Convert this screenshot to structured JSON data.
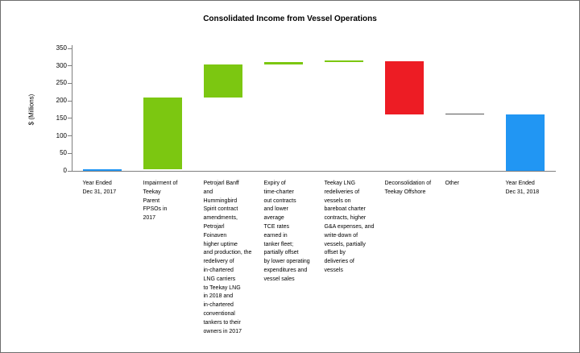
{
  "chart_data": {
    "type": "waterfall",
    "title": "Consolidated Income from Vessel Operations",
    "ylabel": "$ (Millions)",
    "ylim": [
      0,
      350
    ],
    "ytick_step": 50,
    "yticks": [
      0,
      50,
      100,
      150,
      200,
      250,
      300,
      350
    ],
    "grid": false,
    "legend": false,
    "colors": {
      "total": "#2196f3",
      "increase": "#7cc711",
      "decrease": "#ed1c24",
      "neutral": "#595959"
    },
    "bars": [
      {
        "label": "Year Ended\nDec 31, 2017",
        "start": 0,
        "end": 5,
        "role": "total"
      },
      {
        "label": "Impairment of\nTeekay\nParent\nFPSOs in\n2017",
        "start": 5,
        "end": 210,
        "role": "increase"
      },
      {
        "label": "Petrojarl Banff\nand\nHummingbird\nSpirit contract\namendments,\nPetrojarl\nFoinaven\nhigher uptime\nand production, the\nredelivery of\nin-chartered\nLNG carriers\nto Teekay LNG\nin 2018 and\nin-chartered\nconventional\ntankers to their\nowners in 2017",
        "start": 210,
        "end": 305,
        "role": "increase"
      },
      {
        "label": "Expiry of\ntime-charter\nout contracts\nand lower\naverage\nTCE rates\nearned in\ntanker fleet;\npartially offset\nby lower operating\nexpenditures and\nvessel sales",
        "start": 305,
        "end": 312,
        "role": "increase"
      },
      {
        "label": "Teekay LNG\nredeliveries of\nvessels on\nbareboat charter\ncontracts, higher\nG&A expenses, and\nwrite-down of\nvessels, partially\noffset by\ndeliveries of\nvessels",
        "start": 312,
        "end": 313,
        "role": "increase"
      },
      {
        "label": "Deconsolidation of\nTeekay Offshore",
        "start": 313,
        "end": 162,
        "role": "decrease"
      },
      {
        "label": "Other",
        "start": 162,
        "end": 162,
        "role": "neutral"
      },
      {
        "label": "Year Ended\nDec 31, 2018",
        "start": 0,
        "end": 162,
        "role": "total"
      }
    ]
  }
}
